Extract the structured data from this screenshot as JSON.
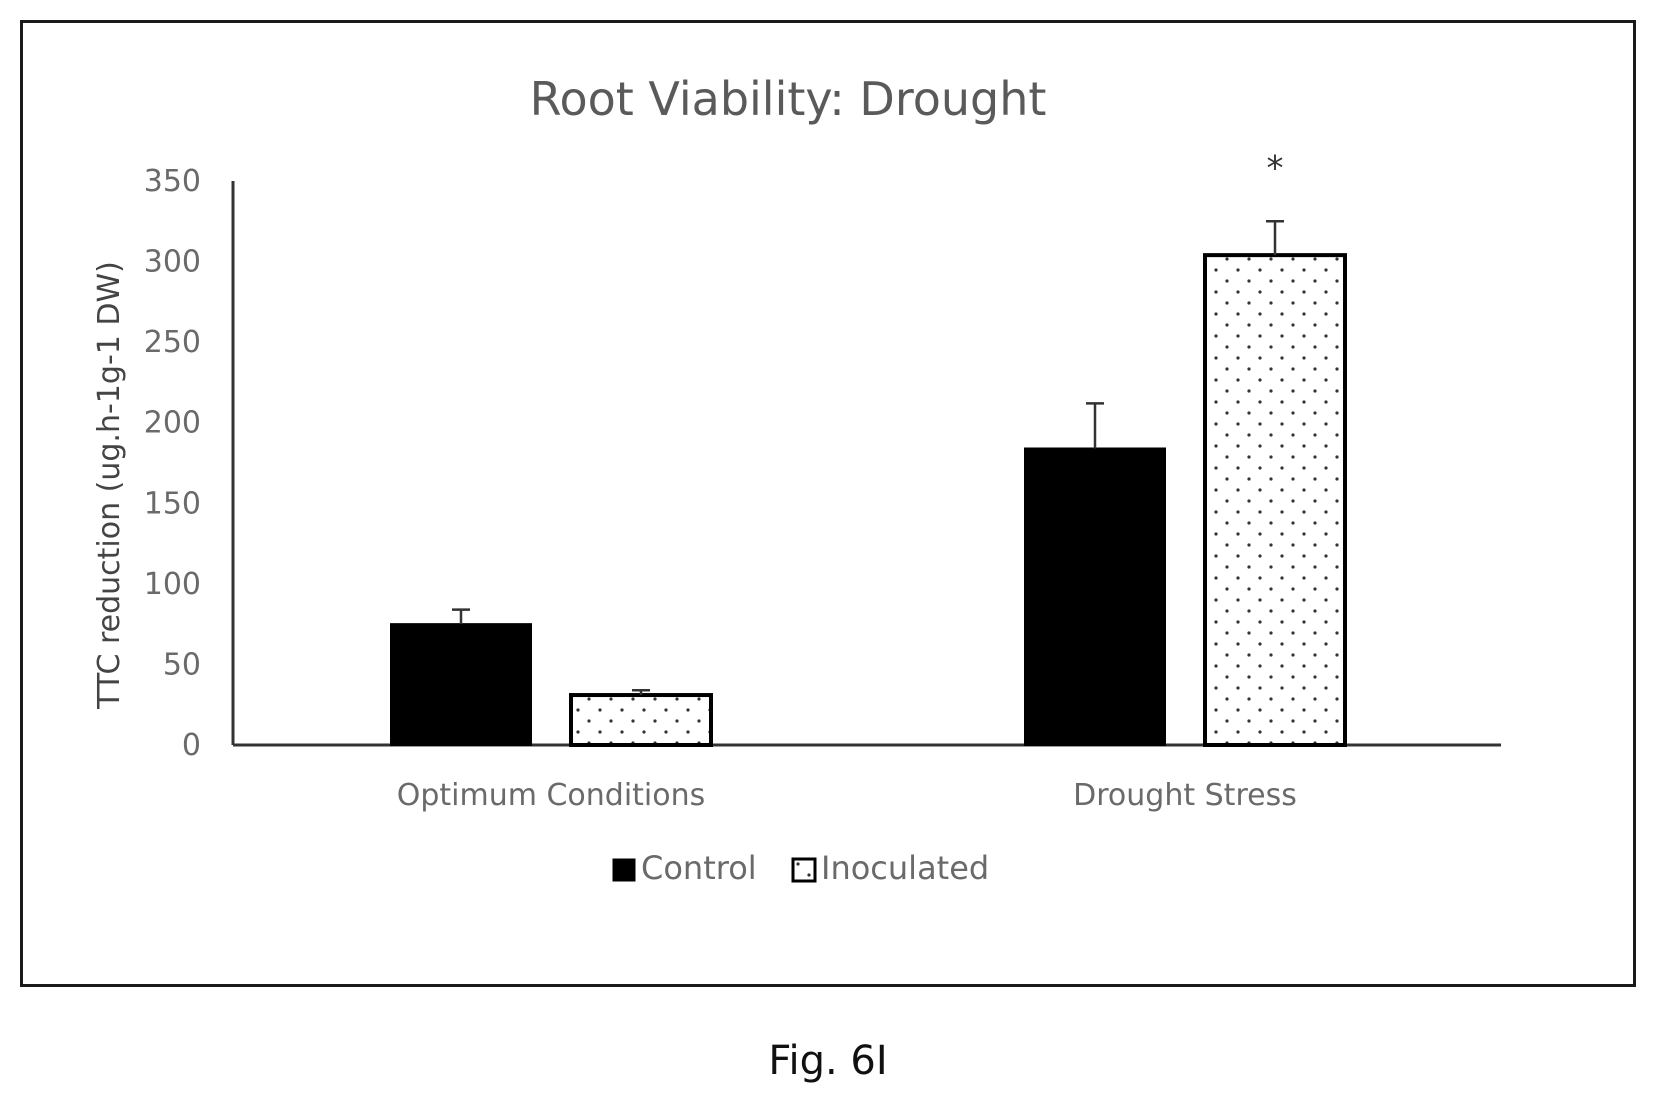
{
  "figure_caption": "Fig. 6I",
  "colors": {
    "control": "#000000",
    "inoculated_fill": "#ffffff",
    "inoculated_dots": "#333333",
    "axis": "#333333",
    "frame": "#1a1a1a"
  },
  "chart_data": {
    "type": "bar",
    "title": "Root Viability: Drought",
    "ylabel": "TTC reduction (ug.h-1g-1 DW)",
    "xlabel": "",
    "categories": [
      "Optimum Conditions",
      "Drought Stress"
    ],
    "ylim": [
      0,
      350
    ],
    "yticks": [
      0,
      50,
      100,
      150,
      200,
      250,
      300,
      350
    ],
    "series": [
      {
        "name": "Control",
        "values": [
          75,
          184
        ],
        "errors": [
          9,
          28
        ],
        "pattern": "solid"
      },
      {
        "name": "Inoculated",
        "values": [
          31,
          304
        ],
        "errors": [
          3,
          21
        ],
        "pattern": "dotted"
      }
    ],
    "annotations": [
      {
        "category": "Drought Stress",
        "series": "Inoculated",
        "text": "*"
      }
    ],
    "legend_position": "bottom-center",
    "grid": false
  }
}
